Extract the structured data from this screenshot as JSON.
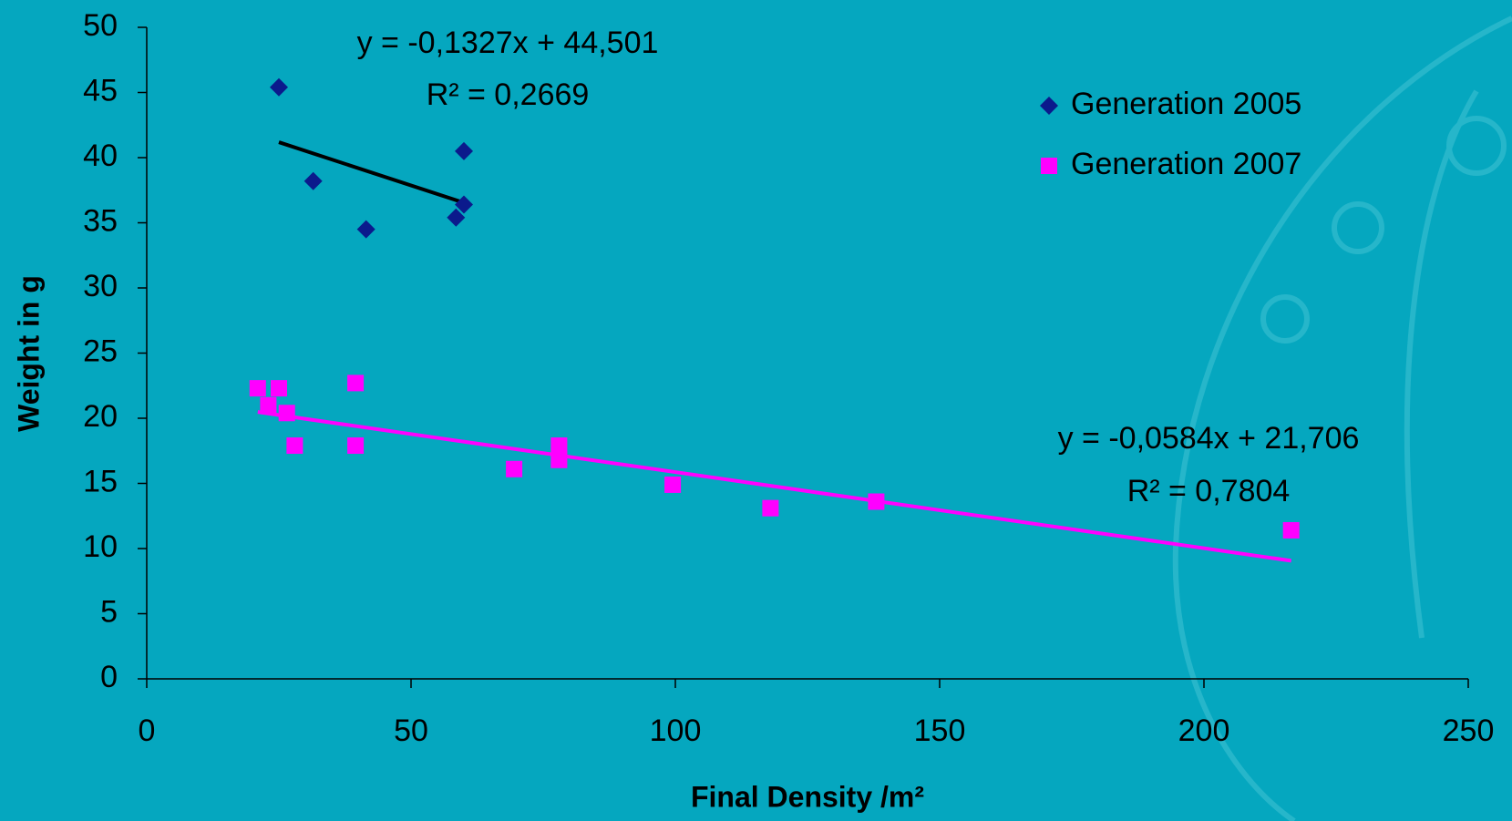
{
  "chart_data": {
    "type": "scatter",
    "xlabel": "Final Density /m²",
    "ylabel": "Weight in g",
    "xlim": [
      0,
      250
    ],
    "xticks": [
      0,
      50,
      100,
      150,
      200,
      250
    ],
    "ylim": [
      0,
      50
    ],
    "yticks": [
      0,
      5,
      10,
      15,
      20,
      25,
      30,
      35,
      40,
      45,
      50
    ],
    "legend": "upper right",
    "series": [
      {
        "name": "Generation 2005",
        "color": "#0b1a8c",
        "marker": "diamond",
        "x": [
          25,
          31.5,
          41.5,
          58.5,
          60,
          60
        ],
        "values": [
          45.4,
          38.2,
          34.5,
          35.4,
          36.4,
          40.5
        ],
        "trendline": {
          "color": "#000000",
          "slope": -0.1327,
          "intercept": 44.501,
          "equation": "y = -0,1327x + 44,501",
          "r2": "R² = 0,2669"
        }
      },
      {
        "name": "Generation 2007",
        "color": "#ff00ff",
        "marker": "square",
        "x": [
          21,
          23,
          25,
          26.5,
          28,
          39.5,
          39.5,
          69.5,
          78,
          78,
          99.5,
          118,
          138,
          216.5
        ],
        "values": [
          22.3,
          21.0,
          22.3,
          20.4,
          17.9,
          22.7,
          17.9,
          16.1,
          17.9,
          16.8,
          14.9,
          13.1,
          13.6,
          11.4
        ],
        "trendline": {
          "color": "#ff00ff",
          "slope": -0.0584,
          "intercept": 21.706,
          "equation": "y = -0,0584x + 21,706",
          "r2": "R² = 0,7804"
        }
      }
    ]
  }
}
